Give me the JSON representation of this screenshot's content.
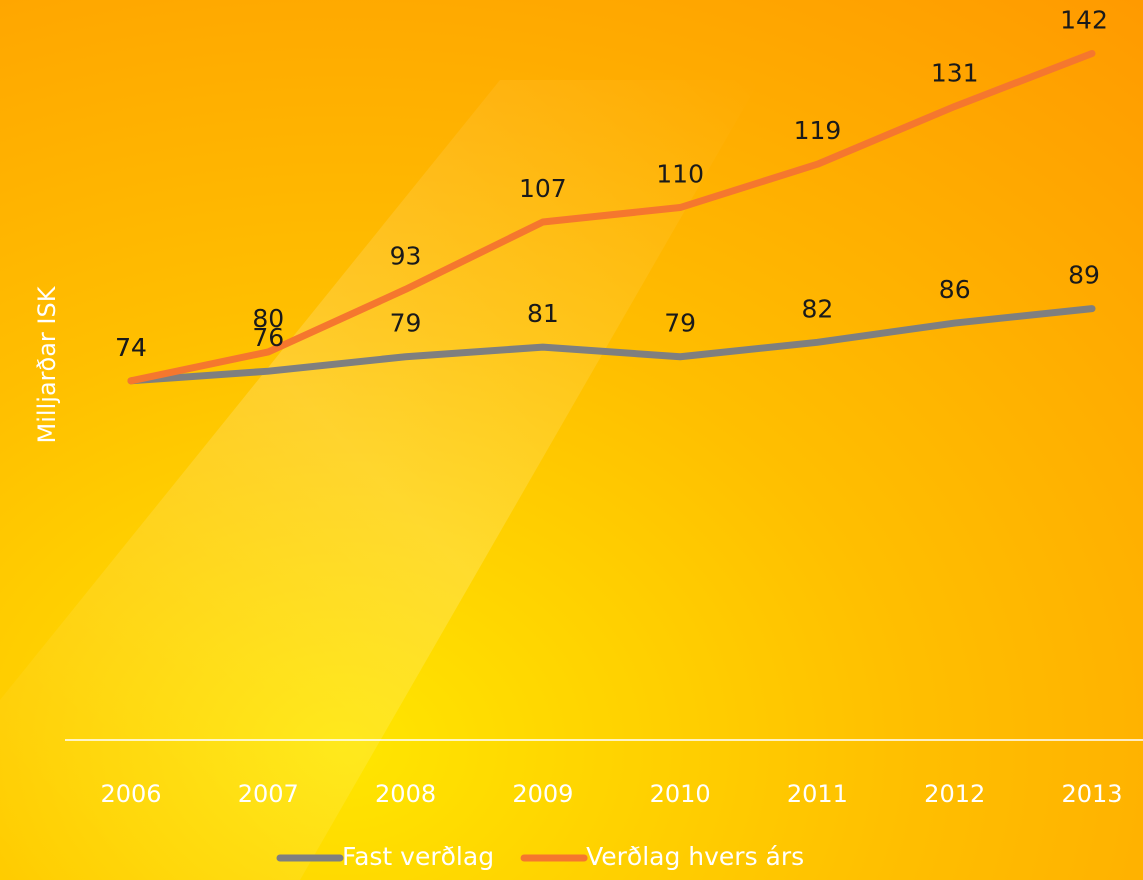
{
  "chart_data": {
    "type": "line",
    "y_label": "Milljarðar ISK",
    "categories": [
      "2006",
      "2007",
      "2008",
      "2009",
      "2010",
      "2011",
      "2012",
      "2013"
    ],
    "series": [
      {
        "name": "Fast verðlag",
        "color": "#7f7f7f",
        "values": [
          74,
          76,
          79,
          81,
          79,
          82,
          86,
          89
        ]
      },
      {
        "name": "Verðlag hvers árs",
        "color": "#f5772e",
        "values": [
          74,
          80,
          93,
          107,
          110,
          119,
          131,
          142
        ]
      }
    ],
    "ylim": [
      0,
      150
    ],
    "legend": "bottom"
  }
}
